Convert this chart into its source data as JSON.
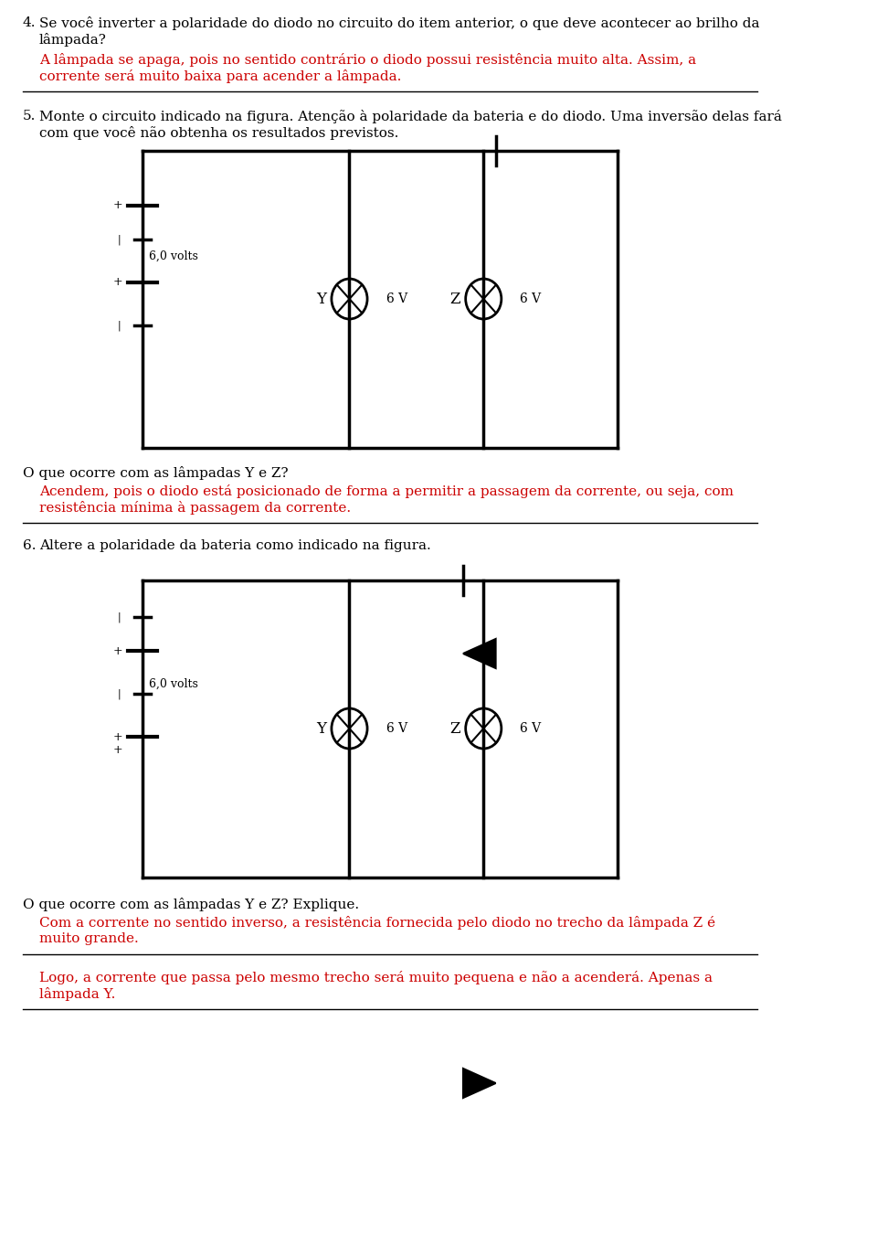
{
  "bg_color": "#ffffff",
  "text_color": "#000000",
  "red_color": "#cc0000",
  "line_color": "#000000",
  "font_family": "DejaVu Serif",
  "section4": {
    "number": "4.",
    "question": "Se você inverter a polaridade do diodo no circuito do item anterior, o que deve acontecer ao brilho da lâmpada?",
    "answer_red": "A lâmpada se apaga, pois no sentido contrário o diodo possui resistência muito alta. Assim, a corrente será muito baixa para acender a lâmpada."
  },
  "section5": {
    "number": "5.",
    "question": "Monte o circuito indicado na figura. Atenção à polaridade da bateria e do diodo. Uma inversão delas fará com que você não obtenha os resultados previstos.",
    "circuit1_label": "6,0 volts",
    "lamp_y_label": "Y",
    "lamp_z_label": "Z",
    "volt_label": "6 V",
    "q_label": "O que ocorre com as lâmpadas Y e Z?",
    "answer_red": "Acendem, pois o diodo está posicionado de forma a permitir a passagem da corrente, ou seja, com resistência mínima à passagem da corrente."
  },
  "section6": {
    "number": "6.",
    "question": "Altere a polaridade da bateria como indicado na figura.",
    "circuit2_label": "6,0 volts",
    "lamp_y_label": "Y",
    "lamp_z_label": "Z",
    "volt_label": "6 V",
    "q_label": "O que ocorre com as lâmpadas Y e Z? Explique.",
    "answer_red1": "Com a corrente no sentido inverso, a resistência fornecida pelo diodo no trecho da lâmpada Z é muito grande.",
    "answer_red2": "Logo, a corrente que passa pelo mesmo trecho será muito pequena e não a acenderá. Apenas a lâmpada Y."
  }
}
